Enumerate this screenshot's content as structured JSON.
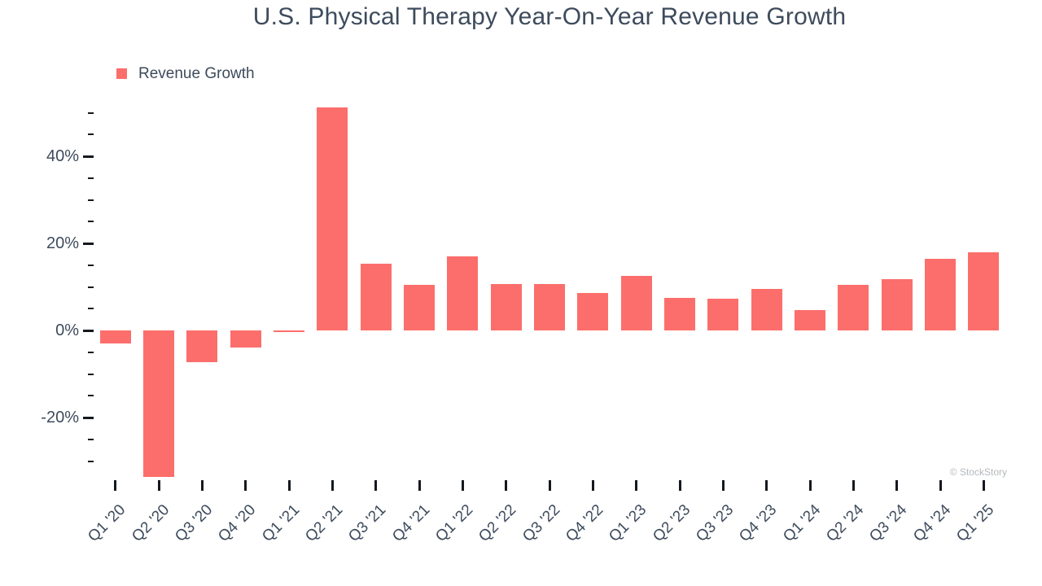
{
  "watermark": "© StockStory",
  "chart_data": {
    "type": "bar",
    "title": "U.S. Physical Therapy Year-On-Year Revenue Growth",
    "series_name": "Revenue Growth",
    "categories": [
      "Q1 '20",
      "Q2 '20",
      "Q3 '20",
      "Q4 '20",
      "Q1 '21",
      "Q2 '21",
      "Q3 '21",
      "Q4 '21",
      "Q1 '22",
      "Q2 '22",
      "Q3 '22",
      "Q4 '22",
      "Q1 '23",
      "Q2 '23",
      "Q3 '23",
      "Q4 '23",
      "Q1 '24",
      "Q2 '24",
      "Q3 '24",
      "Q4 '24",
      "Q1 '25"
    ],
    "values": [
      -3,
      -33.6,
      -7.2,
      -3.9,
      -0.3,
      51.2,
      15.4,
      10.5,
      17,
      10.7,
      10.6,
      8.7,
      12.5,
      7.5,
      7.3,
      9.5,
      4.7,
      10.4,
      11.8,
      16.4,
      17.9
    ],
    "unit": "%",
    "xlabel": "",
    "ylabel": "",
    "ylim": [
      -35,
      52.5
    ],
    "yticks": {
      "min": -30,
      "max": 50,
      "minor_step": 5,
      "labeled": [
        40,
        20,
        0,
        -20
      ]
    },
    "grid": false,
    "legend_position": "top-left",
    "bar_color": "#fc6e6b",
    "text_color": "#3d4b5c",
    "tick_color": "#15191e",
    "watermark_color": "#b4b8bc"
  }
}
